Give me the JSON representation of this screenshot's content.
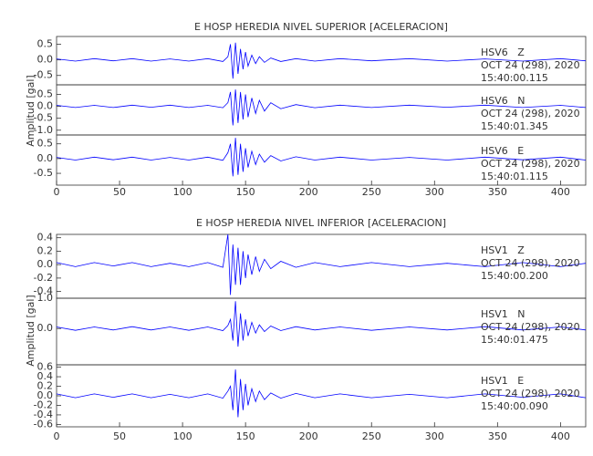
{
  "chart_data": [
    {
      "type": "line",
      "title": "E HOSP HEREDIA NIVEL SUPERIOR [ACELERACION]",
      "y_label": "Amplitud [gal]",
      "xlim": [
        0,
        420
      ],
      "xticks": [
        0,
        50,
        100,
        150,
        200,
        250,
        300,
        350,
        400
      ],
      "x": [
        0,
        15,
        30,
        45,
        60,
        75,
        90,
        105,
        120,
        132,
        136,
        138,
        140,
        142,
        144,
        146,
        148,
        150,
        152,
        155,
        158,
        161,
        165,
        170,
        178,
        190,
        205,
        225,
        250,
        280,
        310,
        340,
        370,
        400,
        420
      ],
      "panels": [
        {
          "ylim": [
            -0.8,
            0.75
          ],
          "yticks": [
            0.5,
            {
              "value": 0,
              "label": "0.0"
            },
            -0.5
          ],
          "annotations": [
            "HSV6   Z",
            "OCT 24 (298), 2020",
            "15:40:00.115"
          ],
          "color": "#0000ff",
          "values": [
            0.03,
            -0.04,
            0.04,
            -0.03,
            0.04,
            -0.04,
            0.03,
            -0.04,
            0.04,
            -0.05,
            0.1,
            0.5,
            -0.6,
            0.55,
            -0.45,
            0.35,
            -0.3,
            0.25,
            -0.2,
            0.15,
            -0.12,
            0.1,
            -0.08,
            0.06,
            -0.05,
            0.04,
            -0.04,
            0.04,
            -0.03,
            0.04,
            -0.04,
            0.03,
            -0.04,
            0.04,
            -0.03
          ]
        },
        {
          "ylim": [
            -1.2,
            0.9
          ],
          "yticks": [
            0.5,
            {
              "value": 0,
              "label": "0.0"
            },
            -0.5,
            {
              "value": -1,
              "label": "-1.0"
            }
          ],
          "annotations": [
            "HSV6   N",
            "OCT 24 (298), 2020",
            "15:40:01.345"
          ],
          "color": "#0000ff",
          "values": [
            0.04,
            -0.05,
            0.04,
            -0.05,
            0.05,
            -0.04,
            0.05,
            -0.05,
            0.04,
            -0.06,
            0.15,
            0.6,
            -0.8,
            0.7,
            -0.7,
            0.6,
            -0.55,
            0.5,
            -0.45,
            0.35,
            -0.3,
            0.25,
            -0.2,
            0.15,
            -0.1,
            0.07,
            -0.06,
            0.05,
            -0.05,
            0.05,
            -0.04,
            0.05,
            -0.05,
            0.04,
            -0.05
          ]
        },
        {
          "ylim": [
            -0.9,
            0.8
          ],
          "yticks": [
            0.5,
            {
              "value": 0,
              "label": "0.0"
            },
            -0.5
          ],
          "annotations": [
            "HSV6   E",
            "OCT 24 (298), 2020",
            "15:40:01.115"
          ],
          "color": "#0000ff",
          "values": [
            0.04,
            -0.05,
            0.05,
            -0.04,
            0.05,
            -0.05,
            0.04,
            -0.05,
            0.05,
            -0.06,
            0.2,
            0.5,
            -0.6,
            0.7,
            -0.55,
            0.5,
            -0.45,
            0.35,
            -0.3,
            0.25,
            -0.2,
            0.15,
            -0.12,
            0.1,
            -0.08,
            0.06,
            -0.05,
            0.05,
            -0.05,
            0.04,
            -0.05,
            0.05,
            -0.04,
            0.05,
            -0.05
          ]
        }
      ]
    },
    {
      "type": "line",
      "title": "E HOSP HEREDIA NIVEL INFERIOR [ACELERACION]",
      "y_label": "Amplitud [gal]",
      "xlim": [
        0,
        420
      ],
      "xticks": [
        0,
        50,
        100,
        150,
        200,
        250,
        300,
        350,
        400
      ],
      "x": [
        0,
        15,
        30,
        45,
        60,
        75,
        90,
        105,
        120,
        132,
        136,
        138,
        140,
        142,
        144,
        146,
        148,
        150,
        152,
        155,
        158,
        161,
        165,
        170,
        178,
        190,
        205,
        225,
        250,
        280,
        310,
        340,
        370,
        400,
        420
      ],
      "panels": [
        {
          "ylim": [
            -0.5,
            0.45
          ],
          "yticks": [
            0.4,
            0.2,
            {
              "value": 0,
              "label": "0.0"
            },
            -0.2,
            -0.4
          ],
          "annotations": [
            "HSV1   Z",
            "OCT 24 (298), 2020",
            "15:40:00.200"
          ],
          "color": "#0000ff",
          "values": [
            0.03,
            -0.03,
            0.03,
            -0.02,
            0.03,
            -0.03,
            0.02,
            -0.03,
            0.03,
            -0.04,
            0.45,
            -0.45,
            0.3,
            -0.3,
            0.25,
            -0.3,
            0.2,
            -0.2,
            0.15,
            -0.15,
            0.12,
            -0.1,
            0.08,
            -0.06,
            0.05,
            -0.04,
            0.03,
            -0.03,
            0.03,
            -0.03,
            0.02,
            -0.03,
            0.03,
            -0.03,
            0.02
          ]
        },
        {
          "ylim": [
            -1.2,
            1.0
          ],
          "yticks": [
            {
              "value": 1,
              "label": "1.0"
            },
            {
              "value": 0,
              "label": "0.0"
            }
          ],
          "annotations": [
            "HSV1   N",
            "OCT 24 (298), 2020",
            "15:40:01.475"
          ],
          "color": "#0000ff",
          "values": [
            0.05,
            -0.06,
            0.05,
            -0.05,
            0.06,
            -0.05,
            0.05,
            -0.06,
            0.05,
            -0.07,
            0.1,
            0.3,
            -0.4,
            0.9,
            -0.6,
            0.5,
            -0.4,
            0.3,
            -0.25,
            0.2,
            -0.15,
            0.12,
            -0.1,
            0.08,
            -0.07,
            0.06,
            -0.05,
            0.05,
            -0.06,
            0.05,
            -0.05,
            0.06,
            -0.05,
            0.05,
            -0.05
          ]
        },
        {
          "ylim": [
            -0.65,
            0.65
          ],
          "yticks": [
            0.6,
            0.4,
            0.2,
            {
              "value": 0,
              "label": "0.0"
            },
            -0.2,
            -0.4,
            -0.6
          ],
          "annotations": [
            "HSV1   E",
            "OCT 24 (298), 2020",
            "15:40:00.090"
          ],
          "color": "#0000ff",
          "values": [
            0.04,
            -0.04,
            0.04,
            -0.03,
            0.04,
            -0.04,
            0.03,
            -0.04,
            0.04,
            -0.05,
            0.1,
            0.2,
            -0.3,
            0.55,
            -0.45,
            0.35,
            -0.3,
            0.25,
            -0.2,
            0.15,
            -0.12,
            0.1,
            -0.08,
            0.06,
            -0.05,
            0.05,
            -0.04,
            0.04,
            -0.04,
            0.03,
            -0.04,
            0.04,
            -0.03,
            0.04,
            -0.04
          ]
        }
      ]
    }
  ]
}
